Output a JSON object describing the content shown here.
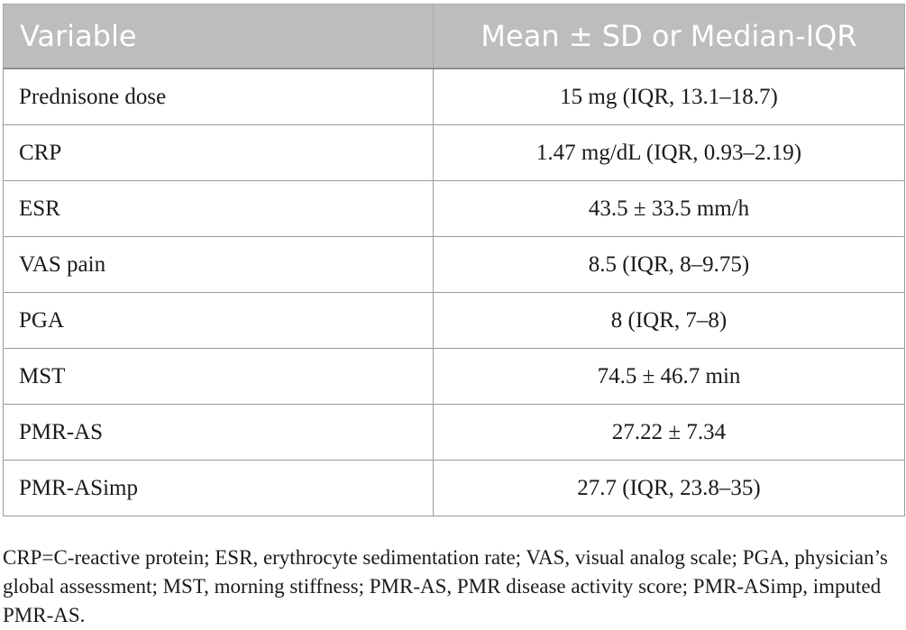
{
  "table": {
    "headers": {
      "variable": "Variable",
      "value": "Mean ± SD or Median-IQR"
    },
    "rows": [
      {
        "variable": "Prednisone dose",
        "value": "15 mg (IQR, 13.1–18.7)"
      },
      {
        "variable": "CRP",
        "value": "1.47 mg/dL (IQR, 0.93–2.19)"
      },
      {
        "variable": "ESR",
        "value": "43.5 ± 33.5 mm/h"
      },
      {
        "variable": "VAS pain",
        "value": "8.5 (IQR, 8–9.75)"
      },
      {
        "variable": "PGA",
        "value": "8 (IQR, 7–8)"
      },
      {
        "variable": "MST",
        "value": "74.5 ± 46.7 min"
      },
      {
        "variable": "PMR-AS",
        "value": "27.22 ± 7.34"
      },
      {
        "variable": "PMR-ASimp",
        "value": "27.7 (IQR, 23.8–35)"
      }
    ]
  },
  "footnote": "CRP=C-reactive protein; ESR, erythrocyte sedimentation rate; VAS, visual analog scale; PGA, physician’s global assessment; MST, morning stiffness; PMR-AS, PMR disease activity score; PMR-ASimp, imputed PMR-AS.",
  "colors": {
    "header_bg": "#bdbdbd",
    "header_text": "#ffffff",
    "border": "#9a9a9a",
    "text": "#1a1a1a"
  }
}
